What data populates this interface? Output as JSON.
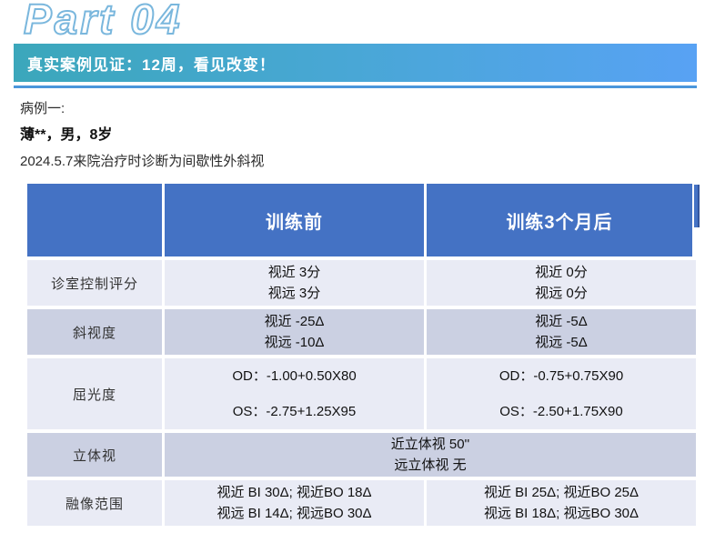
{
  "page": {
    "part_label": "Part 04",
    "banner_title": "真实案例见证：12周，看见改变！",
    "case_line1": "病例一:",
    "case_line2": "薄**，男，8岁",
    "case_line3": "2024.5.7来院治疗时诊断为间歇性外斜视"
  },
  "colors": {
    "header_bg": "#4472C4",
    "row_light": "#E9EBF5",
    "row_dark": "#CBD0E2",
    "banner_gradient_start": "#3BA7BB",
    "banner_gradient_end": "#58A2F4",
    "separator_line": "#4B96DB",
    "part_outline": "#7AB7DD"
  },
  "table": {
    "headers": [
      "",
      "训练前",
      "训练3个月后"
    ],
    "rows": [
      {
        "label": "诊室控制评分",
        "before": [
          "视近 3分",
          "视远 3分"
        ],
        "after": [
          "视近 0分",
          "视远 0分"
        ]
      },
      {
        "label": "斜视度",
        "before": [
          "视近 -25Δ",
          "视远 -10Δ"
        ],
        "after": [
          "视近 -5Δ",
          "视远 -5Δ"
        ]
      },
      {
        "label": "屈光度",
        "before": [
          "OD：-1.00+0.50X80",
          "OS：-2.75+1.25X95"
        ],
        "after": [
          "OD：-0.75+0.75X90",
          "OS：-2.50+1.75X90"
        ]
      },
      {
        "label": "立体视",
        "span": [
          "近立体视 50''",
          "远立体视 无"
        ]
      },
      {
        "label": "融像范围",
        "before": [
          "视近 BI 30Δ; 视近BO 18Δ",
          "视远 BI 14Δ; 视远BO 30Δ"
        ],
        "after": [
          "视近 BI 25Δ; 视近BO 25Δ",
          "视远 BI 18Δ; 视远BO 30Δ"
        ]
      }
    ]
  }
}
